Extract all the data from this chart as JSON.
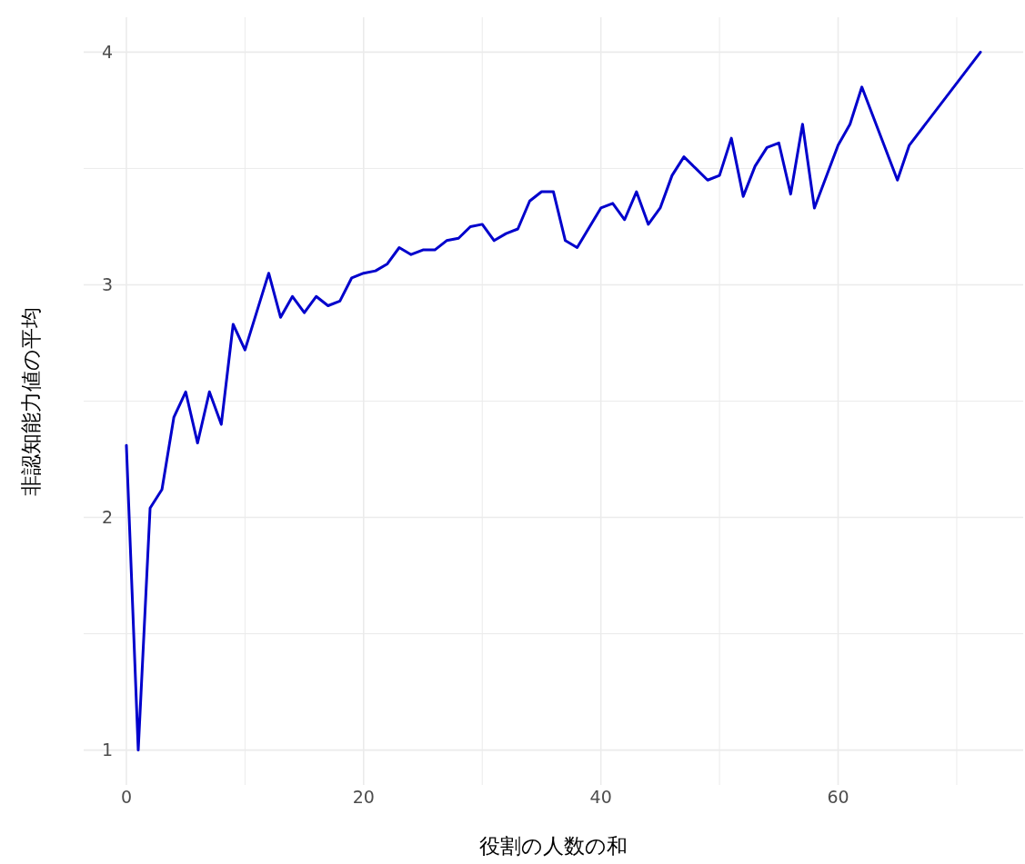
{
  "chart_data": {
    "type": "line",
    "xlabel": "役割の人数の和",
    "ylabel": "非認知能力値の平均",
    "xlim": [
      -3.6,
      75.6
    ],
    "ylim": [
      0.85,
      4.15
    ],
    "xticks": [
      0,
      {
        "value": 10,
        "label": null
      },
      20,
      {
        "value": 30,
        "label": null
      },
      40,
      {
        "value": 50,
        "label": null
      },
      60,
      {
        "value": 70,
        "label": null
      }
    ],
    "yticks": [
      1,
      {
        "value": 1.5,
        "label": null
      },
      2,
      {
        "value": 2.5,
        "label": null
      },
      3,
      {
        "value": 3.5,
        "label": null
      },
      4
    ],
    "grid": true,
    "marker": "none",
    "line_style": "solid",
    "series": [
      {
        "color": "#0000cc",
        "x": [
          0,
          1,
          2,
          3,
          4,
          5,
          6,
          7,
          8,
          9,
          10,
          12,
          13,
          14,
          15,
          16,
          17,
          18,
          19,
          20,
          21,
          22,
          23,
          24,
          25,
          26,
          27,
          28,
          29,
          30,
          31,
          32,
          33,
          34,
          35,
          36,
          37,
          38,
          40,
          41,
          42,
          43,
          44,
          45,
          46,
          47,
          48,
          49,
          50,
          51,
          52,
          53,
          54,
          55,
          56,
          57,
          58,
          60,
          61,
          62,
          65,
          66,
          72
        ],
        "values": [
          2.31,
          1.0,
          2.04,
          2.12,
          2.43,
          2.54,
          2.32,
          2.54,
          2.4,
          2.83,
          2.72,
          3.05,
          2.86,
          2.95,
          2.88,
          2.95,
          2.91,
          2.93,
          3.03,
          3.05,
          3.06,
          3.09,
          3.16,
          3.13,
          3.15,
          3.15,
          3.19,
          3.2,
          3.25,
          3.26,
          3.19,
          3.22,
          3.24,
          3.36,
          3.4,
          3.4,
          3.19,
          3.16,
          3.33,
          3.35,
          3.28,
          3.4,
          3.26,
          3.33,
          3.47,
          3.55,
          3.5,
          3.45,
          3.47,
          3.63,
          3.38,
          3.51,
          3.59,
          3.61,
          3.39,
          3.69,
          3.33,
          3.6,
          3.69,
          3.85,
          3.45,
          3.6,
          4.0
        ]
      }
    ]
  }
}
